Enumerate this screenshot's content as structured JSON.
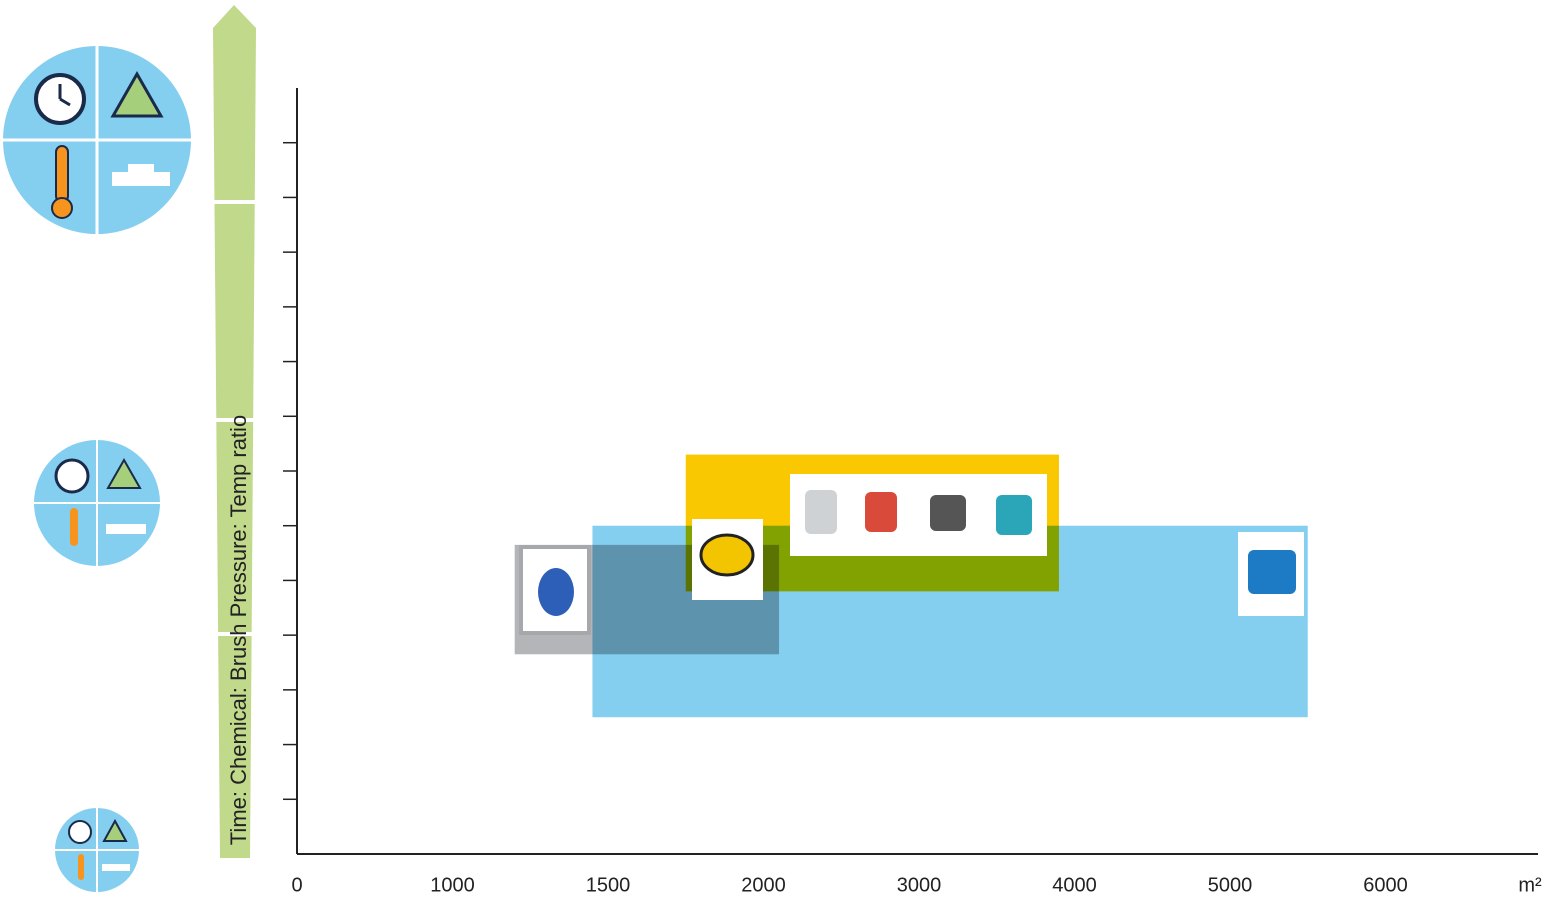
{
  "chart_data": {
    "type": "range",
    "y_axis_label": "Time: Chemical: Brush Pressure: Temp ratio",
    "x_unit": "m²",
    "xlim": [
      0,
      6000
    ],
    "xticks": [
      0,
      1000,
      1500,
      2000,
      3000,
      4000,
      5000,
      6000
    ],
    "ylim": [
      0,
      14
    ],
    "yticks": [
      1,
      2,
      3,
      4,
      5,
      6,
      7,
      8,
      9,
      10,
      11,
      12,
      13
    ],
    "major_yticks": [
      4,
      8,
      12
    ],
    "ranges": [
      {
        "color": "#f9c800",
        "x": [
          1750,
          3900
        ],
        "y": [
          4.8,
          7.3
        ]
      },
      {
        "color": "#84cff0",
        "x": [
          1450,
          5500
        ],
        "y": [
          2.5,
          6.0
        ]
      },
      {
        "color": "#a6a8ab",
        "x": [
          1200,
          2100
        ],
        "y": [
          3.65,
          5.65
        ]
      }
    ]
  }
}
